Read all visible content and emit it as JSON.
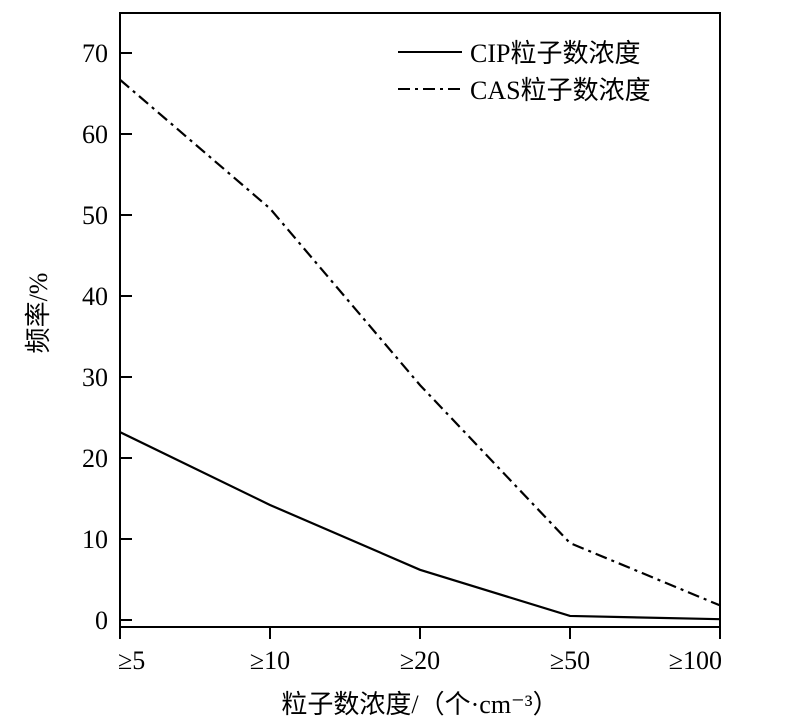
{
  "chart_data": {
    "type": "line",
    "categories": [
      "≥5",
      "≥10",
      "≥20",
      "≥50",
      "≥100"
    ],
    "series": [
      {
        "name": "CIP粒子数浓度",
        "values": [
          23.2,
          14.2,
          6.2,
          0.5,
          0.1
        ],
        "style": "solid",
        "color": "#000000"
      },
      {
        "name": "CAS粒子数浓度",
        "values": [
          66.7,
          50.8,
          29.0,
          9.5,
          1.8
        ],
        "style": "dash-dot",
        "color": "#000000"
      }
    ],
    "title": "",
    "xlabel": "粒子数浓度/（个·cm⁻³）",
    "ylabel": "频率/%",
    "ylim": [
      0,
      75
    ],
    "yticks": [
      0,
      10,
      20,
      30,
      40,
      50,
      60,
      70
    ],
    "grid": false,
    "legend_position": "top-right"
  }
}
